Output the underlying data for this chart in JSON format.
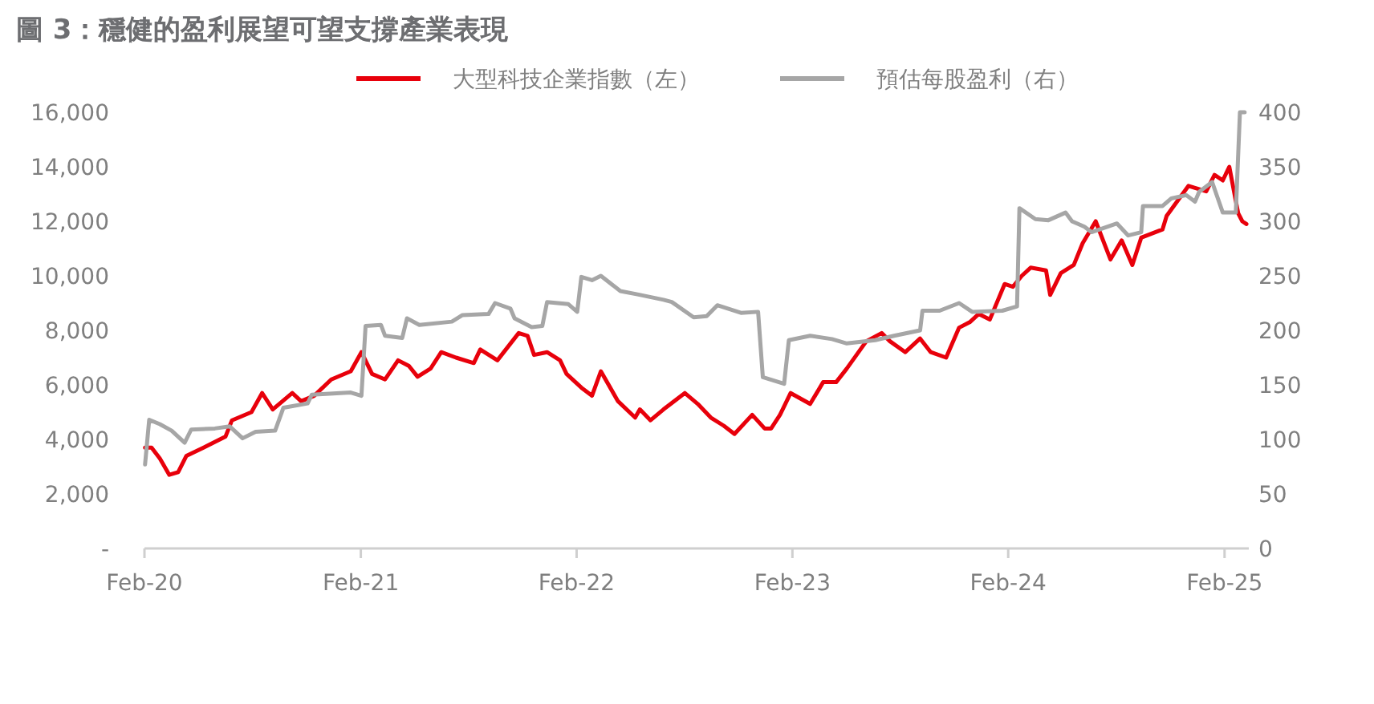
{
  "chart_data": {
    "type": "line",
    "title": "圖 3：穩健的盈利展望可望支撐產業表現",
    "legend": "top",
    "xlim": [
      "2020-02-01",
      "2025-03-14"
    ],
    "xticks": [
      {
        "value": "2020-02-01",
        "label": "Feb-20"
      },
      {
        "value": "2021-02-01",
        "label": "Feb-21"
      },
      {
        "value": "2022-02-01",
        "label": "Feb-22"
      },
      {
        "value": "2023-02-01",
        "label": "Feb-23"
      },
      {
        "value": "2024-02-01",
        "label": "Feb-24"
      },
      {
        "value": "2025-02-01",
        "label": "Feb-25"
      }
    ],
    "ylim": [
      0,
      16000
    ],
    "yticks": [
      {
        "value": 0,
        "label": "-"
      },
      {
        "value": 2000,
        "label": "2,000"
      },
      {
        "value": 4000,
        "label": "4,000"
      },
      {
        "value": 6000,
        "label": "6,000"
      },
      {
        "value": 8000,
        "label": "8,000"
      },
      {
        "value": 10000,
        "label": "10,000"
      },
      {
        "value": 12000,
        "label": "12,000"
      },
      {
        "value": 14000,
        "label": "14,000"
      },
      {
        "value": 16000,
        "label": "16,000"
      }
    ],
    "y2lim": [
      0,
      400
    ],
    "y2ticks": [
      0,
      50,
      100,
      150,
      200,
      250,
      300,
      350,
      400
    ],
    "series": [
      {
        "name": "大型科技企業指數（左）",
        "color": "#e8000b",
        "x": [
          "2020-02-02",
          "2020-02-13",
          "2020-02-27",
          "2020-03-14",
          "2020-03-29",
          "2020-04-12",
          "2020-05-11",
          "2020-06-17",
          "2020-06-28",
          "2020-07-31",
          "2020-08-18",
          "2020-09-05",
          "2020-10-08",
          "2020-10-23",
          "2020-11-14",
          "2020-12-13",
          "2021-01-15",
          "2021-02-02",
          "2021-02-20",
          "2021-03-14",
          "2021-04-05",
          "2021-04-23",
          "2021-05-08",
          "2021-05-30",
          "2021-06-17",
          "2021-07-12",
          "2021-08-11",
          "2021-08-22",
          "2021-09-20",
          "2021-10-26",
          "2021-11-10",
          "2021-11-21",
          "2021-12-13",
          "2022-01-04",
          "2022-01-15",
          "2022-02-09",
          "2022-02-27",
          "2022-03-14",
          "2022-04-12",
          "2022-05-11",
          "2022-05-19",
          "2022-06-06",
          "2022-06-28",
          "2022-08-03",
          "2022-08-25",
          "2022-09-16",
          "2022-10-08",
          "2022-10-26",
          "2022-11-25",
          "2022-12-16",
          "2022-12-27",
          "2023-01-11",
          "2023-01-29",
          "2023-03-03",
          "2023-03-25",
          "2023-04-16",
          "2023-05-04",
          "2023-06-06",
          "2023-07-02",
          "2023-07-16",
          "2023-08-11",
          "2023-09-05",
          "2023-09-23",
          "2023-10-19",
          "2023-11-10",
          "2023-11-28",
          "2023-12-13",
          "2024-01-01",
          "2024-01-26",
          "2024-02-09",
          "2024-02-24",
          "2024-03-10",
          "2024-04-05",
          "2024-04-12",
          "2024-04-30",
          "2024-05-22",
          "2024-06-06",
          "2024-06-28",
          "2024-07-23",
          "2024-08-11",
          "2024-08-29",
          "2024-09-13",
          "2024-10-19",
          "2024-10-26",
          "2024-12-02",
          "2025-01-01",
          "2025-01-15",
          "2025-01-29",
          "2025-02-09",
          "2025-02-24",
          "2025-03-03",
          "2025-03-10"
        ],
        "values": [
          3700,
          3700,
          3300,
          2700,
          2800,
          3400,
          3700,
          4100,
          4700,
          5000,
          5700,
          5100,
          5700,
          5400,
          5600,
          6200,
          6500,
          7200,
          6400,
          6200,
          6900,
          6700,
          6300,
          6600,
          7200,
          7000,
          6800,
          7300,
          6900,
          7900,
          7800,
          7100,
          7200,
          6900,
          6400,
          5900,
          5600,
          6500,
          5400,
          4800,
          5100,
          4700,
          5100,
          5700,
          5300,
          4800,
          4500,
          4200,
          4900,
          4400,
          4400,
          4900,
          5700,
          5300,
          6100,
          6100,
          6600,
          7600,
          7900,
          7600,
          7200,
          7700,
          7200,
          7000,
          8100,
          8300,
          8600,
          8400,
          9700,
          9600,
          10000,
          10300,
          10200,
          9300,
          10100,
          10400,
          11200,
          12000,
          10600,
          11300,
          10400,
          11400,
          11700,
          12200,
          13300,
          13100,
          13700,
          13500,
          14000,
          12300,
          12000,
          11900
        ]
      },
      {
        "name": "預估每股盈利（右）",
        "color": "#a6a6a6",
        "axis": "y2",
        "x": [
          "2020-02-02",
          "2020-02-09",
          "2020-02-27",
          "2020-03-18",
          "2020-04-09",
          "2020-04-20",
          "2020-05-30",
          "2020-06-24",
          "2020-07-16",
          "2020-08-07",
          "2020-09-09",
          "2020-09-23",
          "2020-11-03",
          "2020-11-10",
          "2021-01-15",
          "2021-02-02",
          "2021-02-09",
          "2021-03-07",
          "2021-03-14",
          "2021-04-12",
          "2021-04-20",
          "2021-05-11",
          "2021-07-05",
          "2021-07-23",
          "2021-09-05",
          "2021-09-16",
          "2021-10-12",
          "2021-10-19",
          "2021-11-17",
          "2021-12-05",
          "2021-12-13",
          "2022-01-18",
          "2022-02-02",
          "2022-02-09",
          "2022-02-27",
          "2022-03-14",
          "2022-04-16",
          "2022-05-15",
          "2022-06-28",
          "2022-07-12",
          "2022-08-18",
          "2022-09-09",
          "2022-09-27",
          "2022-11-06",
          "2022-12-05",
          "2022-12-13",
          "2023-01-18",
          "2023-01-26",
          "2023-03-03",
          "2023-04-09",
          "2023-05-04",
          "2023-06-21",
          "2023-07-23",
          "2023-09-05",
          "2023-09-09",
          "2023-10-08",
          "2023-11-10",
          "2023-12-02",
          "2024-01-22",
          "2024-02-16",
          "2024-02-20",
          "2024-03-18",
          "2024-04-09",
          "2024-05-08",
          "2024-05-19",
          "2024-06-09",
          "2024-06-21",
          "2024-08-03",
          "2024-08-22",
          "2024-09-13",
          "2024-09-16",
          "2024-10-19",
          "2024-11-03",
          "2024-11-28",
          "2024-12-13",
          "2024-12-20",
          "2025-01-11",
          "2025-01-29",
          "2025-02-20",
          "2025-02-27",
          "2025-03-07"
        ],
        "values": [
          77,
          118,
          114,
          108,
          97,
          109,
          110,
          112,
          101,
          107,
          108,
          129,
          133,
          141,
          143,
          140,
          204,
          205,
          195,
          193,
          211,
          205,
          208,
          214,
          215,
          225,
          220,
          211,
          203,
          204,
          226,
          224,
          217,
          249,
          246,
          250,
          236,
          233,
          228,
          226,
          212,
          213,
          223,
          216,
          217,
          157,
          151,
          191,
          195,
          192,
          188,
          191,
          195,
          200,
          218,
          218,
          225,
          217,
          218,
          222,
          312,
          302,
          301,
          308,
          300,
          295,
          290,
          298,
          287,
          290,
          314,
          314,
          321,
          324,
          318,
          327,
          336,
          308,
          308,
          400,
          400
        ]
      }
    ]
  }
}
